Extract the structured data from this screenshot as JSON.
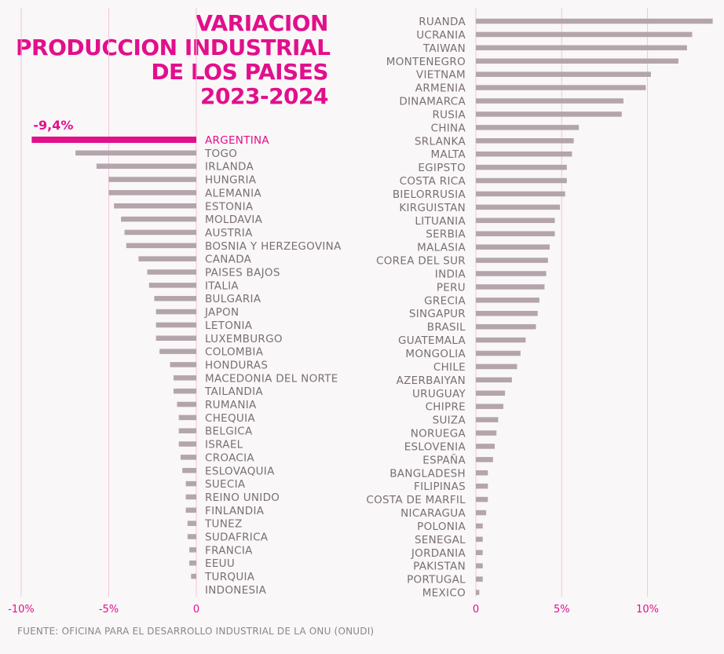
{
  "title_lines": [
    "VARIACION",
    "PRODUCCION INDUSTRIAL",
    "DE LOS PAISES",
    "2023-2024"
  ],
  "source": "FUENTE: OFICINA PARA EL DESARROLLO INDUSTRIAL DE LA ONU (ONUDI)",
  "colors": {
    "accent": "#e20f8c",
    "bar": "#b3a5ab",
    "label": "#7a6f74",
    "grid": "#f2c4dd"
  },
  "chart_data": [
    {
      "type": "bar",
      "orientation": "horizontal",
      "panel": "negative",
      "categories": [
        "ARGENTINA",
        "TOGO",
        "IRLANDA",
        "HUNGRIA",
        "ALEMANIA",
        "ESTONIA",
        "MOLDAVIA",
        "AUSTRIA",
        "BOSNIA Y HERZEGOVINA",
        "CANADA",
        "PAISES BAJOS",
        "ITALIA",
        "BULGARIA",
        "JAPON",
        "LETONIA",
        "LUXEMBURGO",
        "COLOMBIA",
        "HONDURAS",
        "MACEDONIA DEL NORTE",
        "TAILANDIA",
        "RUMANIA",
        "CHEQUIA",
        "BELGICA",
        "ISRAEL",
        "CROACIA",
        "ESLOVAQUIA",
        "SUECIA",
        "REINO UNIDO",
        "FINLANDIA",
        "TUNEZ",
        "SUDAFRICA",
        "FRANCIA",
        "EEUU",
        "TURQUIA",
        "INDONESIA"
      ],
      "values": [
        -9.4,
        -6.9,
        -5.7,
        -5.0,
        -5.0,
        -4.7,
        -4.3,
        -4.1,
        -4.0,
        -3.3,
        -2.8,
        -2.7,
        -2.4,
        -2.3,
        -2.3,
        -2.3,
        -2.1,
        -1.5,
        -1.3,
        -1.3,
        -1.1,
        -1.0,
        -1.0,
        -1.0,
        -0.9,
        -0.8,
        -0.6,
        -0.6,
        -0.6,
        -0.5,
        -0.5,
        -0.4,
        -0.4,
        -0.3,
        0.0
      ],
      "highlight": {
        "category": "ARGENTINA",
        "label": "-9,4%"
      },
      "xlim": [
        -10,
        0
      ],
      "ticks": [
        -10,
        -5,
        0
      ],
      "tick_labels": [
        "-10%",
        "-5%",
        "0"
      ],
      "grid": true
    },
    {
      "type": "bar",
      "orientation": "horizontal",
      "panel": "positive",
      "categories": [
        "RUANDA",
        "UCRANIA",
        "TAIWAN",
        "MONTENEGRO",
        "VIETNAM",
        "ARMENIA",
        "DINAMARCA",
        "RUSIA",
        "CHINA",
        "SRLANKA",
        "MALTA",
        "EGIPSTO",
        "COSTA RICA",
        "BIELORRUSIA",
        "KIRGUISTAN",
        "LITUANIA",
        "SERBIA",
        "MALASIA",
        "COREA DEL SUR",
        "INDIA",
        "PERU",
        "GRECIA",
        "SINGAPUR",
        "BRASIL",
        "GUATEMALA",
        "MONGOLIA",
        "CHILE",
        "AZERBAIYAN",
        "URUGUAY",
        "CHIPRE",
        "SUIZA",
        "NORUEGA",
        "ESLOVENIA",
        "ESPAÑA",
        "BANGLADESH",
        "FILIPINAS",
        "COSTA DE MARFIL",
        "NICARAGUA",
        "POLONIA",
        "SENEGAL",
        "JORDANIA",
        "PAKISTAN",
        "PORTUGAL",
        "MEXICO"
      ],
      "values": [
        13.8,
        12.6,
        12.3,
        11.8,
        10.2,
        9.9,
        8.6,
        8.5,
        6.0,
        5.7,
        5.6,
        5.3,
        5.3,
        5.2,
        4.9,
        4.6,
        4.6,
        4.3,
        4.2,
        4.1,
        4.0,
        3.7,
        3.6,
        3.5,
        2.9,
        2.6,
        2.4,
        2.1,
        1.7,
        1.6,
        1.3,
        1.2,
        1.1,
        1.0,
        0.7,
        0.7,
        0.7,
        0.6,
        0.4,
        0.4,
        0.4,
        0.4,
        0.4,
        0.2
      ],
      "xlim": [
        0,
        14
      ],
      "ticks": [
        0,
        5,
        10
      ],
      "tick_labels": [
        "0",
        "5%",
        "10%"
      ],
      "grid": true
    }
  ]
}
